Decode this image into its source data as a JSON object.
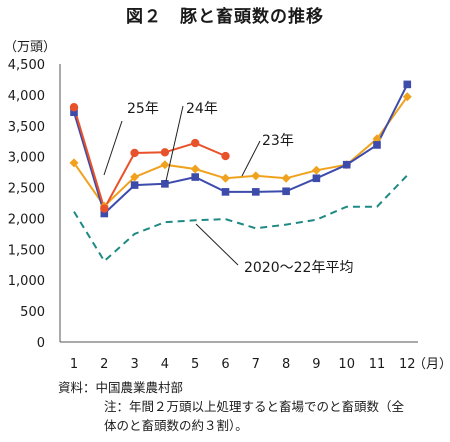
{
  "title": "図２　豚と畜頭数の推移",
  "chart_data": {
    "type": "line",
    "y_unit": "（万頭）",
    "x_unit": "（月）",
    "categories": [
      "1",
      "2",
      "3",
      "4",
      "5",
      "6",
      "7",
      "8",
      "9",
      "10",
      "11",
      "12"
    ],
    "ylim": [
      0,
      4500
    ],
    "yticks": [
      "0",
      "500",
      "1,000",
      "1,500",
      "2,000",
      "2,500",
      "3,000",
      "3,500",
      "4,000",
      "4,500"
    ],
    "grid": false,
    "series": [
      {
        "name": "23年",
        "color": "#f0a21e",
        "marker": "diamond",
        "dash": false,
        "values": [
          2900,
          2200,
          2670,
          2870,
          2800,
          2650,
          2690,
          2650,
          2780,
          2870,
          3290,
          3970
        ]
      },
      {
        "name": "24年",
        "color": "#3d4bab",
        "marker": "square",
        "dash": false,
        "values": [
          3720,
          2080,
          2540,
          2560,
          2670,
          2430,
          2430,
          2440,
          2650,
          2870,
          3190,
          4170
        ]
      },
      {
        "name": "25年",
        "color": "#e8522a",
        "marker": "circle",
        "dash": false,
        "values": [
          3800,
          2160,
          3060,
          3070,
          3220,
          3010,
          null,
          null,
          null,
          null,
          null,
          null
        ]
      },
      {
        "name": "2020～22年平均",
        "color": "#1f8a84",
        "marker": "none",
        "dash": true,
        "values": [
          2110,
          1310,
          1750,
          1940,
          1970,
          1990,
          1840,
          1900,
          1980,
          2190,
          2190,
          2700
        ]
      }
    ]
  },
  "notes": {
    "source": "資料：中国農業農村部",
    "note1": "注：年間２万頭以上処理すると畜場でのと畜頭数（全",
    "note2": "体のと畜頭数の約３割）。"
  }
}
